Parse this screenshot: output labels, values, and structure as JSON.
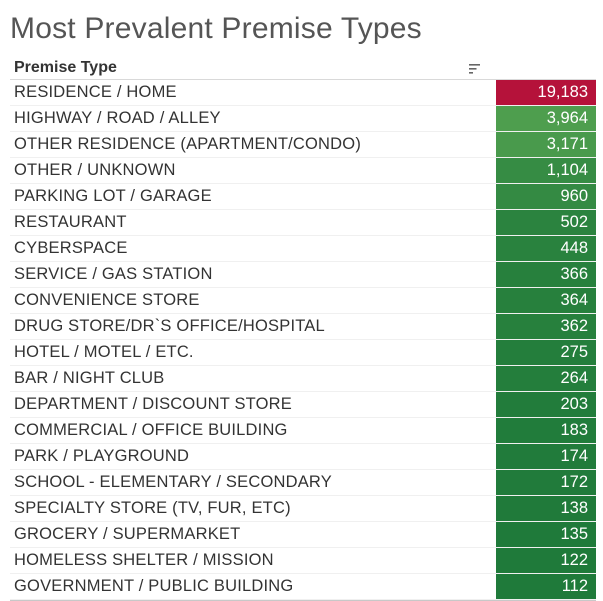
{
  "title": "Most Prevalent Premise Types",
  "header": {
    "column_label": "Premise Type",
    "sort_icon": "sort-descending-icon"
  },
  "colors": {
    "high": "#b5123a",
    "mid": "#4e9e4e",
    "low": "#1f7a3a"
  },
  "chart_data": {
    "type": "table",
    "title": "Most Prevalent Premise Types",
    "columns": [
      "Premise Type"
    ],
    "categories": [
      "RESIDENCE / HOME",
      "HIGHWAY / ROAD / ALLEY",
      "OTHER RESIDENCE (APARTMENT/CONDO)",
      "OTHER / UNKNOWN",
      "PARKING LOT / GARAGE",
      "RESTAURANT",
      "CYBERSPACE",
      "SERVICE / GAS STATION",
      "CONVENIENCE STORE",
      "DRUG STORE/DR`S OFFICE/HOSPITAL",
      "HOTEL / MOTEL / ETC.",
      "BAR / NIGHT CLUB",
      "DEPARTMENT / DISCOUNT STORE",
      "COMMERCIAL / OFFICE BUILDING",
      "PARK / PLAYGROUND",
      "SCHOOL - ELEMENTARY / SECONDARY",
      "SPECIALTY STORE (TV, FUR, ETC)",
      "GROCERY / SUPERMARKET",
      "HOMELESS SHELTER / MISSION",
      "GOVERNMENT / PUBLIC BUILDING"
    ],
    "values": [
      19183,
      3964,
      3171,
      1104,
      960,
      502,
      448,
      366,
      364,
      362,
      275,
      264,
      203,
      183,
      174,
      172,
      138,
      135,
      122,
      112
    ],
    "value_labels": [
      "19,183",
      "3,964",
      "3,171",
      "1,104",
      "960",
      "502",
      "448",
      "366",
      "364",
      "362",
      "275",
      "264",
      "203",
      "183",
      "174",
      "172",
      "138",
      "135",
      "122",
      "112"
    ]
  }
}
